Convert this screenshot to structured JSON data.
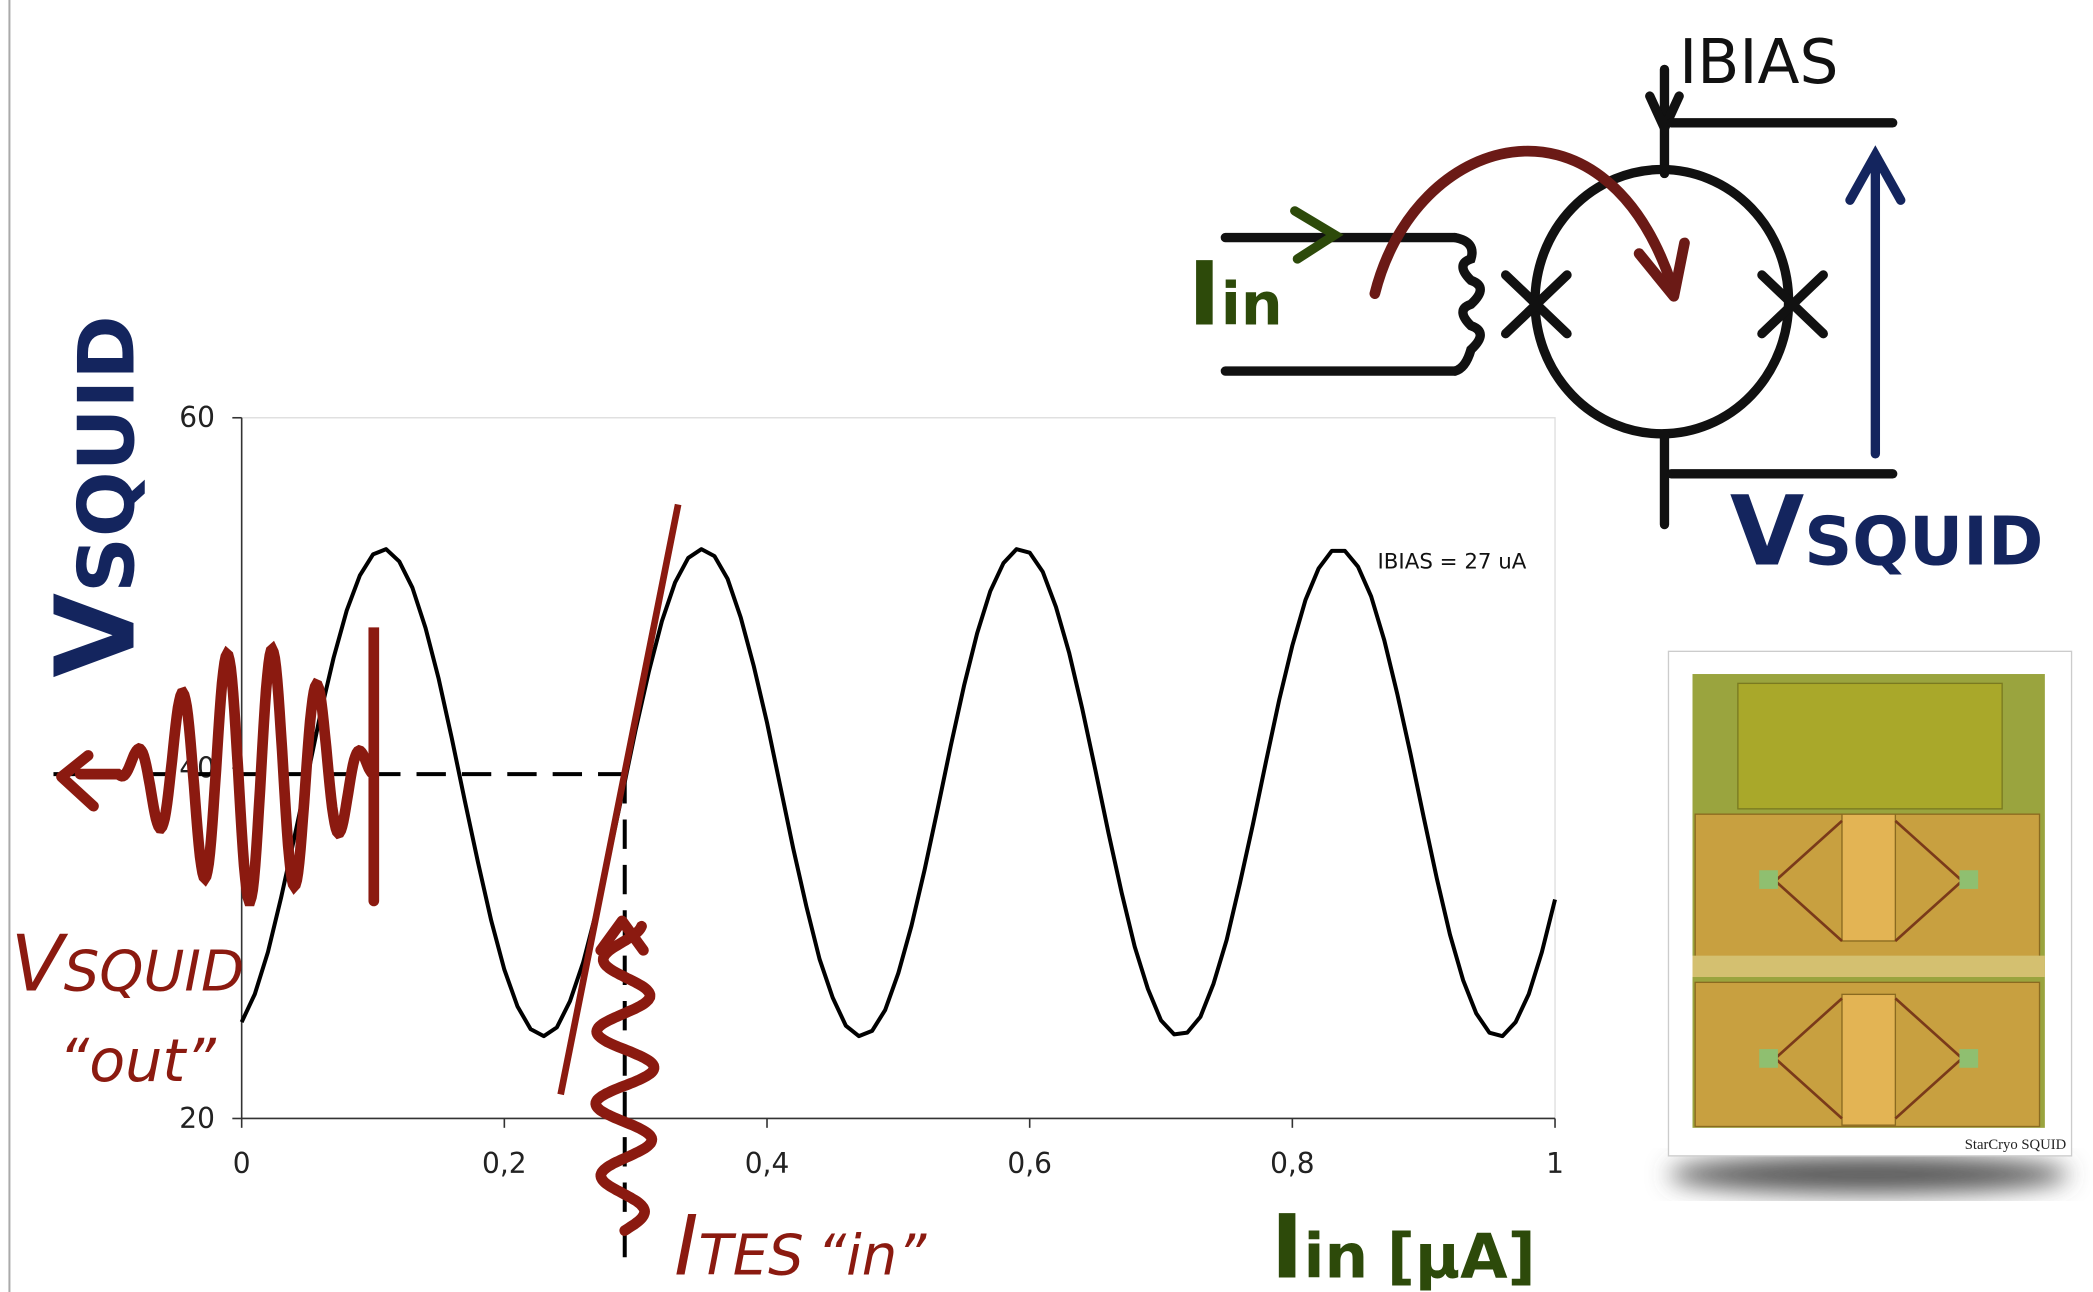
{
  "chart_data": {
    "type": "line",
    "x": [
      0,
      0.01,
      0.02,
      0.03,
      0.04,
      0.05,
      0.06,
      0.07,
      0.08,
      0.09,
      0.1,
      0.11,
      0.12,
      0.13,
      0.14,
      0.15,
      0.16,
      0.17,
      0.18,
      0.19,
      0.2,
      0.21,
      0.22,
      0.23,
      0.24,
      0.25,
      0.26,
      0.27,
      0.28,
      0.29,
      0.3,
      0.31,
      0.32,
      0.33,
      0.34,
      0.35,
      0.36,
      0.37,
      0.38,
      0.39,
      0.4,
      0.41,
      0.42,
      0.43,
      0.44,
      0.45,
      0.46,
      0.47,
      0.48,
      0.49,
      0.5,
      0.51,
      0.52,
      0.53,
      0.54,
      0.55,
      0.56,
      0.57,
      0.58,
      0.59,
      0.6,
      0.61,
      0.62,
      0.63,
      0.64,
      0.65,
      0.66,
      0.67,
      0.68,
      0.69,
      0.7,
      0.71,
      0.72,
      0.73,
      0.74,
      0.75,
      0.76,
      0.77,
      0.78,
      0.79,
      0.8,
      0.81,
      0.82,
      0.83,
      0.84,
      0.85,
      0.86,
      0.87,
      0.88,
      0.89,
      0.9,
      0.91,
      0.92,
      0.93,
      0.94,
      0.95,
      0.96,
      0.97,
      0.98,
      0.99,
      1
    ],
    "series": [
      {
        "color": "#000000",
        "values": [
          25.5,
          27.1,
          29.5,
          32.6,
          36.0,
          39.5,
          43.1,
          46.3,
          49.0,
          51.0,
          52.2,
          52.5,
          51.8,
          50.3,
          48.0,
          45.1,
          41.7,
          38.1,
          34.6,
          31.3,
          28.5,
          26.4,
          25.1,
          24.7,
          25.2,
          26.7,
          28.9,
          31.8,
          35.1,
          38.6,
          42.2,
          45.5,
          48.4,
          50.6,
          52.0,
          52.5,
          52.1,
          50.8,
          48.6,
          45.8,
          42.6,
          39.0,
          35.4,
          32.1,
          29.1,
          26.9,
          25.3,
          24.7,
          25.0,
          26.2,
          28.3,
          31.0,
          34.2,
          37.7,
          41.3,
          44.7,
          47.7,
          50.1,
          51.7,
          52.5,
          52.3,
          51.2,
          49.2,
          46.6,
          43.4,
          39.9,
          36.3,
          32.9,
          29.8,
          27.4,
          25.6,
          24.8,
          24.9,
          25.8,
          27.7,
          30.2,
          33.4,
          36.8,
          40.4,
          43.9,
          47.0,
          49.6,
          51.4,
          52.4,
          52.4,
          51.5,
          49.8,
          47.3,
          44.2,
          40.8,
          37.2,
          33.7,
          30.5,
          27.9,
          26.0,
          24.9,
          24.7,
          25.5,
          27.1,
          29.5,
          32.5
        ]
      }
    ],
    "xlim": [
      0,
      1
    ],
    "ylim": [
      20,
      60
    ],
    "xticks": [
      0,
      {
        "value": 0.2,
        "label": "0,2"
      },
      {
        "value": 0.4,
        "label": "0,4"
      },
      {
        "value": 0.6,
        "label": "0,6"
      },
      {
        "value": 0.8,
        "label": "0,8"
      },
      1
    ],
    "yticks": [
      20,
      40,
      60
    ],
    "y_label": {
      "symbol": "V",
      "subscript": "SQUID"
    },
    "x_label": {
      "symbol": "I",
      "subscript": "in",
      "unit": "[µA]"
    },
    "annotation": "IBIAS = 27 uA"
  },
  "annotations": {
    "output": {
      "symbol": "V",
      "subscript": "SQUID",
      "quote": "“out”"
    },
    "input": {
      "symbol": "I",
      "subscript": "TES",
      "quote": "“in”"
    }
  },
  "diagram": {
    "bias_label": "IBIAS",
    "input_label": {
      "symbol": "I",
      "subscript": "in"
    },
    "output_label": {
      "symbol": "V",
      "subscript": "SQUID"
    }
  },
  "photo": {
    "caption": "StarCryo SQUID"
  }
}
